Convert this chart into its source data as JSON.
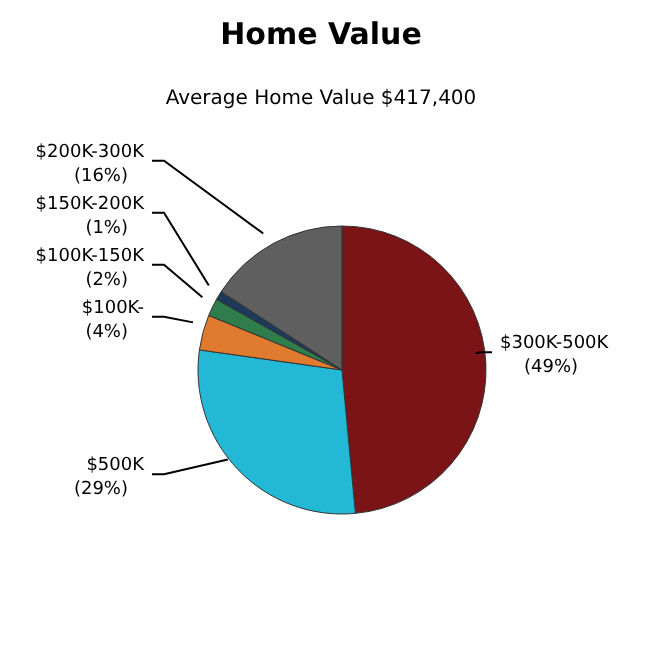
{
  "chart_data": {
    "type": "pie",
    "title": "Home Value",
    "subtitle": "Average Home Value  $417,400",
    "categories": [
      "$300K-500K",
      "$500K",
      "$100K-",
      "$100K-150K",
      "$150K-200K",
      "$200K-300K"
    ],
    "values": [
      49,
      29,
      4,
      2,
      1,
      16
    ],
    "colors": [
      "#7a1416",
      "#23b8d6",
      "#e07a2e",
      "#2e7d4a",
      "#1e3a5a",
      "#5f5f5f"
    ],
    "value_labels": [
      "(49%)",
      "(29%)",
      "(4%)",
      "(2%)",
      "(1%)",
      "(16%)"
    ]
  }
}
